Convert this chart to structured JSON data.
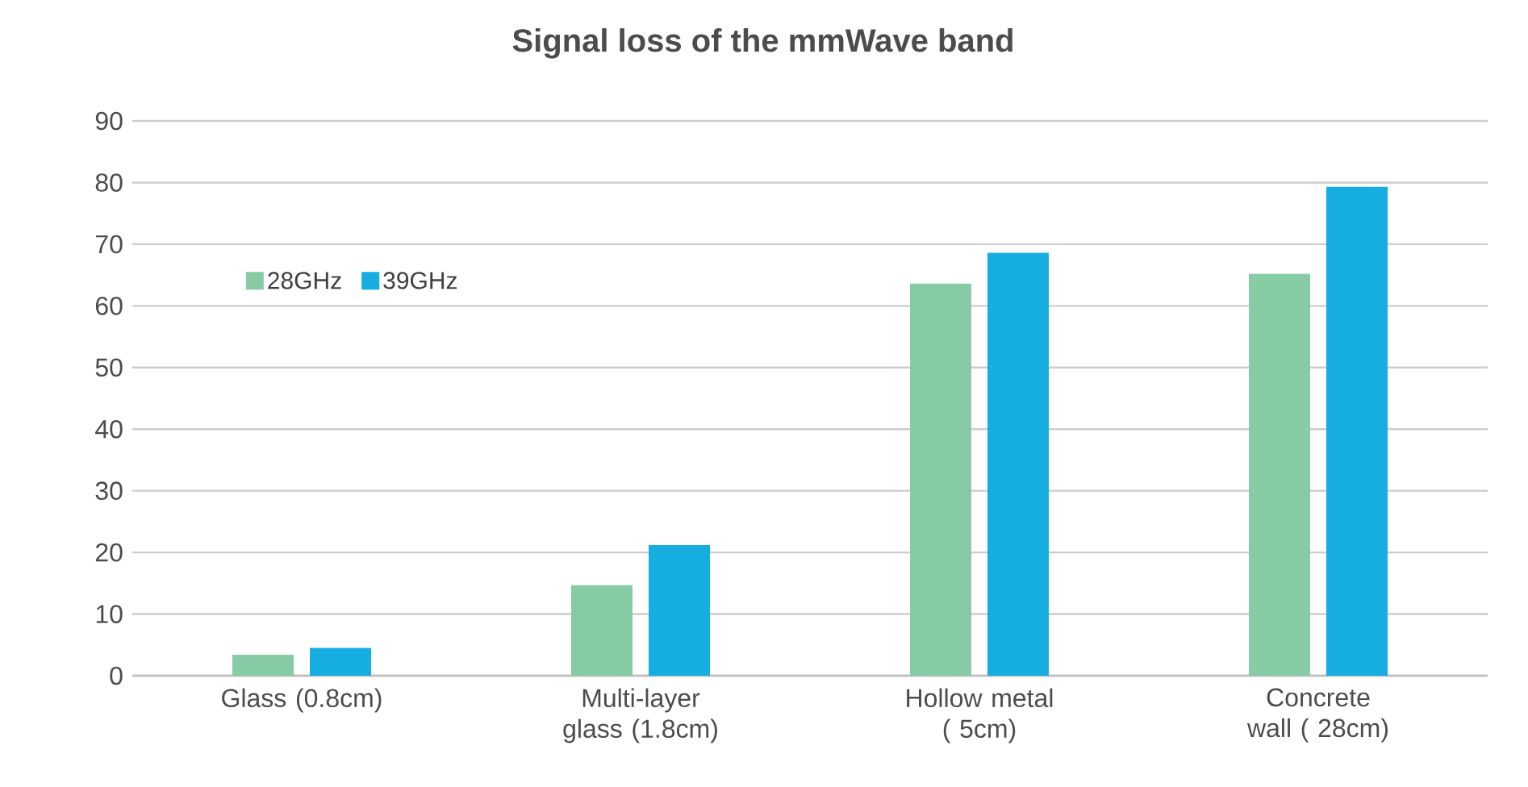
{
  "chart_data": {
    "type": "bar",
    "title": "Signal loss of the mmWave band",
    "categories": [
      "Glass (0.8cm)",
      "Multi-layer glass (1.8cm)",
      "Hollow metal ( 5cm)",
      "Concrete wall ( 28cm)"
    ],
    "series": [
      {
        "name": "28GHz",
        "color": "#86cba4",
        "values": [
          3.4,
          14.7,
          63.6,
          65.2
        ]
      },
      {
        "name": "39GHz",
        "color": "#16aee0",
        "values": [
          4.5,
          21.2,
          68.6,
          79.3
        ]
      }
    ],
    "ylim": [
      0,
      90
    ],
    "yticks": [
      0,
      10,
      20,
      30,
      40,
      50,
      60,
      70,
      80,
      90
    ],
    "grid": "y",
    "legend": "top left"
  }
}
